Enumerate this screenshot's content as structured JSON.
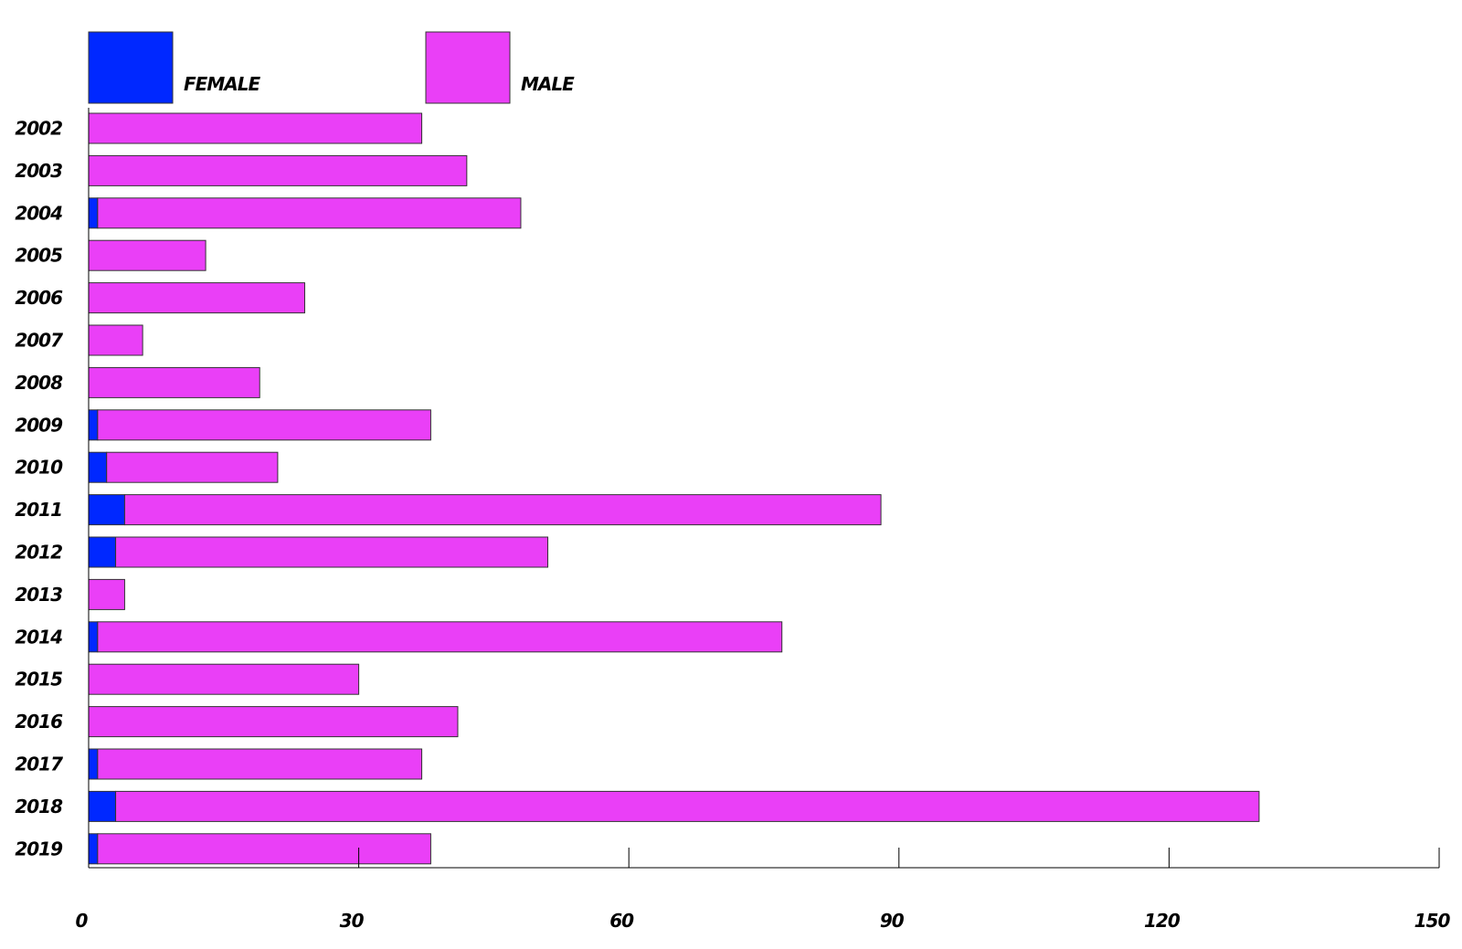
{
  "chart_data": {
    "type": "bar",
    "orientation": "horizontal",
    "stacked": true,
    "title": "",
    "xlabel": "",
    "ylabel": "",
    "categories": [
      "2002",
      "2003",
      "2004",
      "2005",
      "2006",
      "2007",
      "2008",
      "2009",
      "2010",
      "2011",
      "2012",
      "2013",
      "2014",
      "2015",
      "2016",
      "2017",
      "2018",
      "2019"
    ],
    "series": [
      {
        "name": "FEMALE",
        "color": "#0028ff",
        "values": [
          0,
          0,
          1,
          0,
          0,
          0,
          0,
          1,
          2,
          4,
          3,
          0,
          1,
          0,
          0,
          1,
          3,
          1
        ]
      },
      {
        "name": "MALE",
        "color": "#ea3ff7",
        "values": [
          37,
          42,
          47,
          13,
          24,
          6,
          19,
          37,
          19,
          84,
          48,
          4,
          76,
          30,
          41,
          36,
          127,
          37
        ]
      }
    ],
    "xlim": [
      0,
      150
    ],
    "xticks": [
      "0",
      "30",
      "60",
      "90",
      "120",
      "150"
    ],
    "grid": false,
    "legend_position": "top"
  }
}
